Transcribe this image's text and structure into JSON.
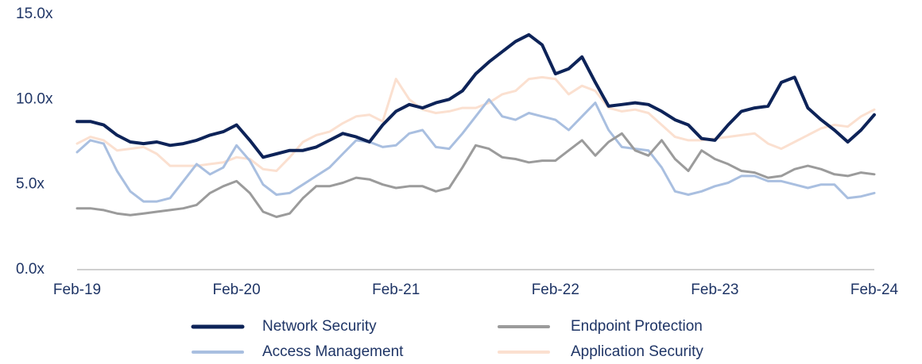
{
  "chart_data": {
    "type": "line",
    "categories": [
      "Feb-19",
      null,
      null,
      null,
      null,
      null,
      null,
      null,
      null,
      null,
      null,
      null,
      "Feb-20",
      null,
      null,
      null,
      null,
      null,
      null,
      null,
      null,
      null,
      null,
      null,
      "Feb-21",
      null,
      null,
      null,
      null,
      null,
      null,
      null,
      null,
      null,
      null,
      null,
      "Feb-22",
      null,
      null,
      null,
      null,
      null,
      null,
      null,
      null,
      null,
      null,
      null,
      "Feb-23",
      null,
      null,
      null,
      null,
      null,
      null,
      null,
      null,
      null,
      null,
      null,
      "Feb-24"
    ],
    "series": [
      {
        "name": "Network Security",
        "color": "#0d2358",
        "values": [
          8.7,
          8.7,
          8.5,
          7.9,
          7.5,
          7.4,
          7.5,
          7.3,
          7.4,
          7.6,
          7.9,
          8.1,
          8.5,
          7.6,
          6.6,
          6.8,
          7.0,
          7.0,
          7.2,
          7.6,
          8.0,
          7.8,
          7.5,
          8.5,
          9.3,
          9.7,
          9.5,
          9.8,
          10.0,
          10.5,
          11.5,
          12.2,
          12.8,
          13.4,
          13.8,
          13.2,
          11.5,
          11.8,
          12.5,
          11.0,
          9.6,
          9.7,
          9.8,
          9.7,
          9.3,
          8.8,
          8.5,
          7.7,
          7.6,
          8.5,
          9.3,
          9.5,
          9.6,
          11.0,
          11.3,
          9.5,
          8.8,
          8.2,
          7.5,
          8.2,
          9.1
        ]
      },
      {
        "name": "Endpoint Protection",
        "color": "#9b9b9b",
        "values": [
          3.6,
          3.6,
          3.5,
          3.3,
          3.2,
          3.3,
          3.4,
          3.5,
          3.6,
          3.8,
          4.5,
          4.9,
          5.2,
          4.5,
          3.4,
          3.1,
          3.3,
          4.2,
          4.9,
          4.9,
          5.1,
          5.4,
          5.3,
          5.0,
          4.8,
          4.9,
          4.9,
          4.6,
          4.8,
          6.0,
          7.3,
          7.1,
          6.6,
          6.5,
          6.3,
          6.4,
          6.4,
          7.0,
          7.6,
          6.7,
          7.5,
          8.0,
          7.0,
          6.7,
          7.6,
          6.5,
          5.8,
          7.0,
          6.5,
          6.2,
          5.8,
          5.7,
          5.4,
          5.5,
          5.9,
          6.1,
          5.9,
          5.6,
          5.5,
          5.7,
          5.6
        ]
      },
      {
        "name": "Access Management",
        "color": "#a9bfe0",
        "values": [
          6.9,
          7.6,
          7.4,
          5.8,
          4.6,
          4.0,
          4.0,
          4.2,
          5.2,
          6.2,
          5.6,
          6.0,
          7.3,
          6.4,
          5.0,
          4.4,
          4.5,
          5.0,
          5.5,
          6.0,
          6.8,
          7.6,
          7.5,
          7.2,
          7.3,
          8.0,
          8.2,
          7.2,
          7.1,
          8.0,
          9.0,
          10.0,
          9.0,
          8.8,
          9.2,
          9.0,
          8.8,
          8.2,
          9.0,
          9.8,
          8.2,
          7.2,
          7.1,
          7.0,
          6.0,
          4.6,
          4.4,
          4.6,
          4.9,
          5.1,
          5.5,
          5.5,
          5.2,
          5.2,
          5.0,
          4.8,
          5.0,
          5.0,
          4.2,
          4.3,
          4.5
        ]
      },
      {
        "name": "Application Security",
        "color": "#fbe0d0",
        "values": [
          7.4,
          7.8,
          7.6,
          7.0,
          7.1,
          7.2,
          6.8,
          6.1,
          6.1,
          6.1,
          6.2,
          6.3,
          6.6,
          6.5,
          5.9,
          5.8,
          6.6,
          7.5,
          7.9,
          8.1,
          8.6,
          9.0,
          9.1,
          8.7,
          11.2,
          10.0,
          9.4,
          9.2,
          9.3,
          9.5,
          9.5,
          9.8,
          10.3,
          10.5,
          11.2,
          11.3,
          11.2,
          10.3,
          10.8,
          10.5,
          9.5,
          9.3,
          9.4,
          9.2,
          8.5,
          7.8,
          7.6,
          7.6,
          7.7,
          7.8,
          7.9,
          8.0,
          7.4,
          7.1,
          7.5,
          7.9,
          8.3,
          8.5,
          8.4,
          9.0,
          9.4
        ]
      }
    ],
    "ylim": [
      0,
      15
    ],
    "yticks": [
      {
        "value": 0,
        "label": "0.0x"
      },
      {
        "value": 5,
        "label": "5.0x"
      },
      {
        "value": 10,
        "label": "10.0x"
      },
      {
        "value": 15,
        "label": "15.0x"
      }
    ],
    "grid": false
  }
}
